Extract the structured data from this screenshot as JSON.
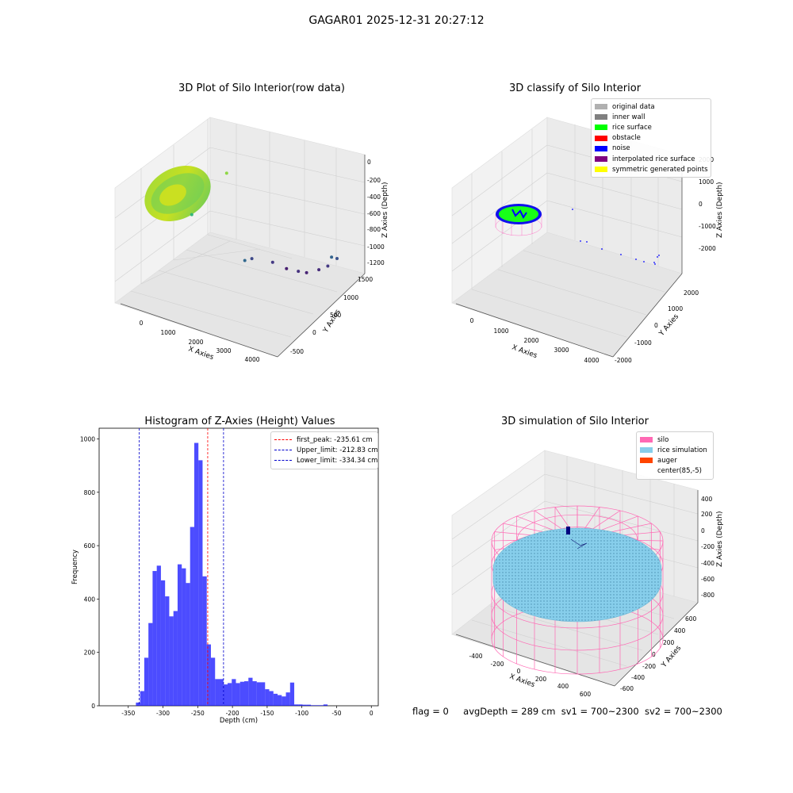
{
  "suptitle": "GAGAR01 2025-12-31 20:27:12",
  "status": {
    "flag": "flag = 0",
    "avg": "avgDepth = 289 cm",
    "sv1": "sv1 = 700~2300",
    "sv2": "sv2 = 700~2300"
  },
  "chart_data": [
    {
      "type": "scatter",
      "projection": "3d",
      "title": "3D Plot of Silo Interior(row data)",
      "xlabel": "X Axies",
      "ylabel": "Y Axies",
      "zlabel": "Z Axies (Depth)",
      "xticks": [
        "0",
        "1000",
        "2000",
        "3000",
        "4000"
      ],
      "yticks": [
        "-500",
        "0",
        "500",
        "1000",
        "1500"
      ],
      "zticks": [
        "0",
        "-200",
        "-400",
        "-600",
        "-800",
        "-1000",
        "-1200"
      ],
      "colormap": "viridis",
      "outliers": [
        {
          "x": 2050,
          "y": 350,
          "z": -180
        },
        {
          "x": 1450,
          "y": -50,
          "z": -600
        },
        {
          "x": 2600,
          "y": 350,
          "z": -1100
        },
        {
          "x": 2700,
          "y": 450,
          "z": -1090
        },
        {
          "x": 3100,
          "y": 650,
          "z": -1140
        },
        {
          "x": 3350,
          "y": 800,
          "z": -1220
        },
        {
          "x": 3650,
          "y": 850,
          "z": -1240
        },
        {
          "x": 3900,
          "y": 850,
          "z": -1240
        },
        {
          "x": 4100,
          "y": 1000,
          "z": -1220
        },
        {
          "x": 4200,
          "y": 1150,
          "z": -1200
        },
        {
          "x": 4250,
          "y": 1350,
          "z": -1150
        },
        {
          "x": 4200,
          "y": 1250,
          "z": -1120
        }
      ]
    },
    {
      "type": "scatter",
      "projection": "3d",
      "title": "3D classify of Silo Interior",
      "xlabel": "X Axies",
      "ylabel": "Y Axies",
      "zlabel": "Z Axies (Depth)",
      "xticks": [
        "0",
        "1000",
        "2000",
        "3000",
        "4000"
      ],
      "yticks": [
        "-2000",
        "-1000",
        "0",
        "1000",
        "2000"
      ],
      "zticks": [
        "2000",
        "1000",
        "0",
        "-1000",
        "-2000"
      ],
      "legend": [
        {
          "label": "original data",
          "color": "#b0b0b0"
        },
        {
          "label": "inner wall",
          "color": "#808080"
        },
        {
          "label": "rice surface",
          "color": "#00ff00"
        },
        {
          "label": "obstacle",
          "color": "#ff0000"
        },
        {
          "label": "noise",
          "color": "#0000ff"
        },
        {
          "label": "interpolated rice surface",
          "color": "#800080"
        },
        {
          "label": "symmetric generated points",
          "color": "#ffff00"
        }
      ]
    },
    {
      "type": "bar",
      "title": "Histogram of Z-Axies (Height) Values",
      "xlabel": "Depth (cm)",
      "ylabel": "Frequency",
      "xlim": [
        -392,
        10
      ],
      "ylim": [
        0,
        1040
      ],
      "xticks": [
        -350,
        -300,
        -250,
        -200,
        -150,
        -100,
        -50,
        0
      ],
      "yticks": [
        0,
        200,
        400,
        600,
        800,
        1000
      ],
      "bin_start": -339.0,
      "bin_width": 6.0,
      "values": [
        12,
        55,
        180,
        310,
        505,
        525,
        470,
        410,
        335,
        355,
        530,
        515,
        460,
        670,
        985,
        920,
        485,
        230,
        180,
        100,
        100,
        80,
        85,
        100,
        85,
        90,
        92,
        105,
        92,
        88,
        88,
        62,
        55,
        45,
        40,
        35,
        50,
        87,
        5,
        5,
        4,
        4,
        2,
        2,
        2,
        5
      ],
      "bar_color": "#0000ff",
      "lines": [
        {
          "label": "first_peak: -235.61 cm",
          "x": -235.61,
          "color": "#ff0000"
        },
        {
          "label": "Upper_limit: -212.83 cm",
          "x": -212.83,
          "color": "#0000cc"
        },
        {
          "label": "Lower_limit: -334.34 cm",
          "x": -334.34,
          "color": "#0000cc"
        }
      ]
    },
    {
      "type": "scatter",
      "projection": "3d",
      "title": "3D simulation of Silo Interior",
      "xlabel": "X Axies",
      "ylabel": "Y Axies",
      "zlabel": "Z Axies (Depth)",
      "xticks": [
        "-400",
        "-200",
        "0",
        "200",
        "400",
        "600"
      ],
      "yticks": [
        "-600",
        "-400",
        "-200",
        "0",
        "200",
        "400",
        "600"
      ],
      "zticks": [
        "400",
        "200",
        "0",
        "-200",
        "-400",
        "-600",
        "-800"
      ],
      "legend": [
        {
          "label": "silo",
          "color": "#ff69b4"
        },
        {
          "label": "rice simulation",
          "color": "#87ceeb"
        },
        {
          "label": "auger",
          "color": "#ff4500"
        },
        {
          "label": "center(85,-5)",
          "color": "#ffffff"
        }
      ]
    }
  ]
}
